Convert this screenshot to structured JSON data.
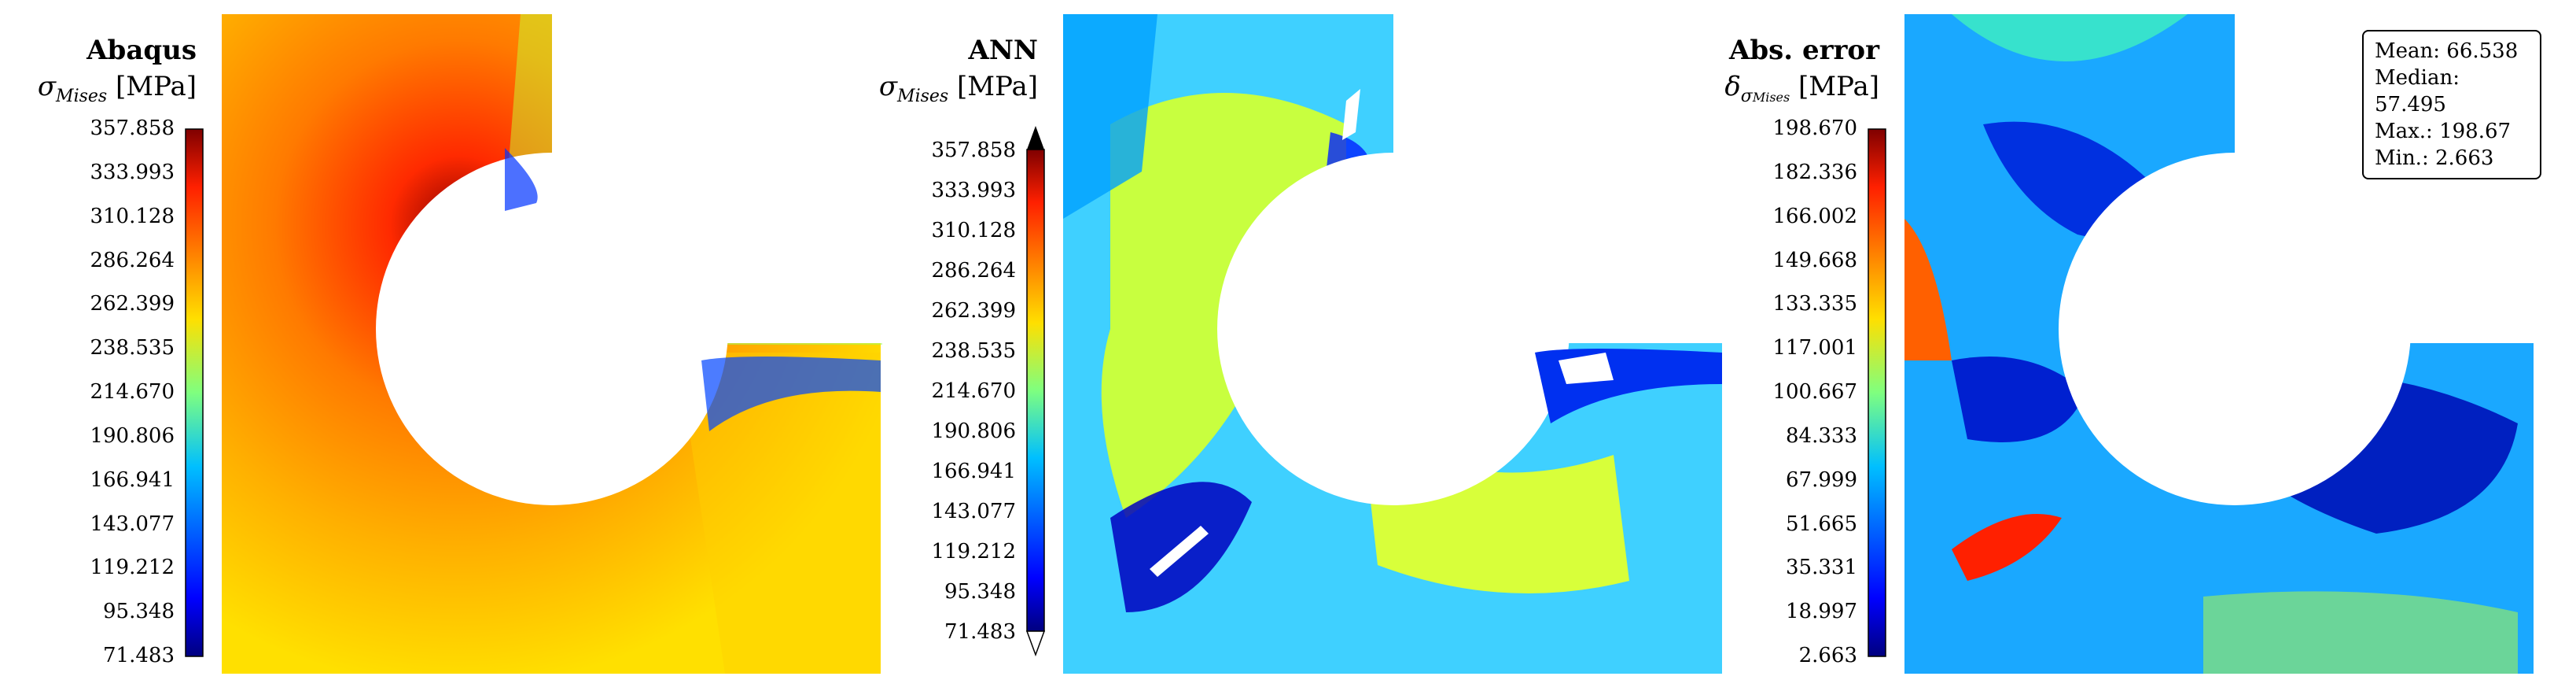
{
  "panels": [
    {
      "title": "Abaqus",
      "quantity": "σ",
      "subscript": "Mises",
      "unit": "[MPa]",
      "colorbar_ticks": [
        "357.858",
        "333.993",
        "310.128",
        "286.264",
        "262.399",
        "238.535",
        "214.670",
        "190.806",
        "166.941",
        "143.077",
        "119.212",
        "95.348",
        "71.483"
      ],
      "colormap": "jet"
    },
    {
      "title": "ANN",
      "quantity": "σ",
      "subscript": "Mises",
      "unit": "[MPa]",
      "colorbar_ticks": [
        "357.858",
        "333.993",
        "310.128",
        "286.264",
        "262.399",
        "238.535",
        "214.670",
        "190.806",
        "166.941",
        "143.077",
        "119.212",
        "95.348",
        "71.483"
      ],
      "colormap": "jet",
      "colorbar_extends": "both"
    },
    {
      "title": "Abs. error",
      "quantity": "δ",
      "quantity_sub": "σ",
      "subscript": "Mises",
      "unit": "[MPa]",
      "colorbar_ticks": [
        "198.670",
        "182.336",
        "166.002",
        "149.668",
        "133.335",
        "117.001",
        "100.667",
        "84.333",
        "67.999",
        "51.665",
        "35.331",
        "18.997",
        "2.663"
      ],
      "colormap": "jet",
      "stats": {
        "mean": "Mean: 66.538",
        "median": "Median: 57.495",
        "max": "Max.: 198.67",
        "min": "Min.: 2.663"
      }
    }
  ]
}
